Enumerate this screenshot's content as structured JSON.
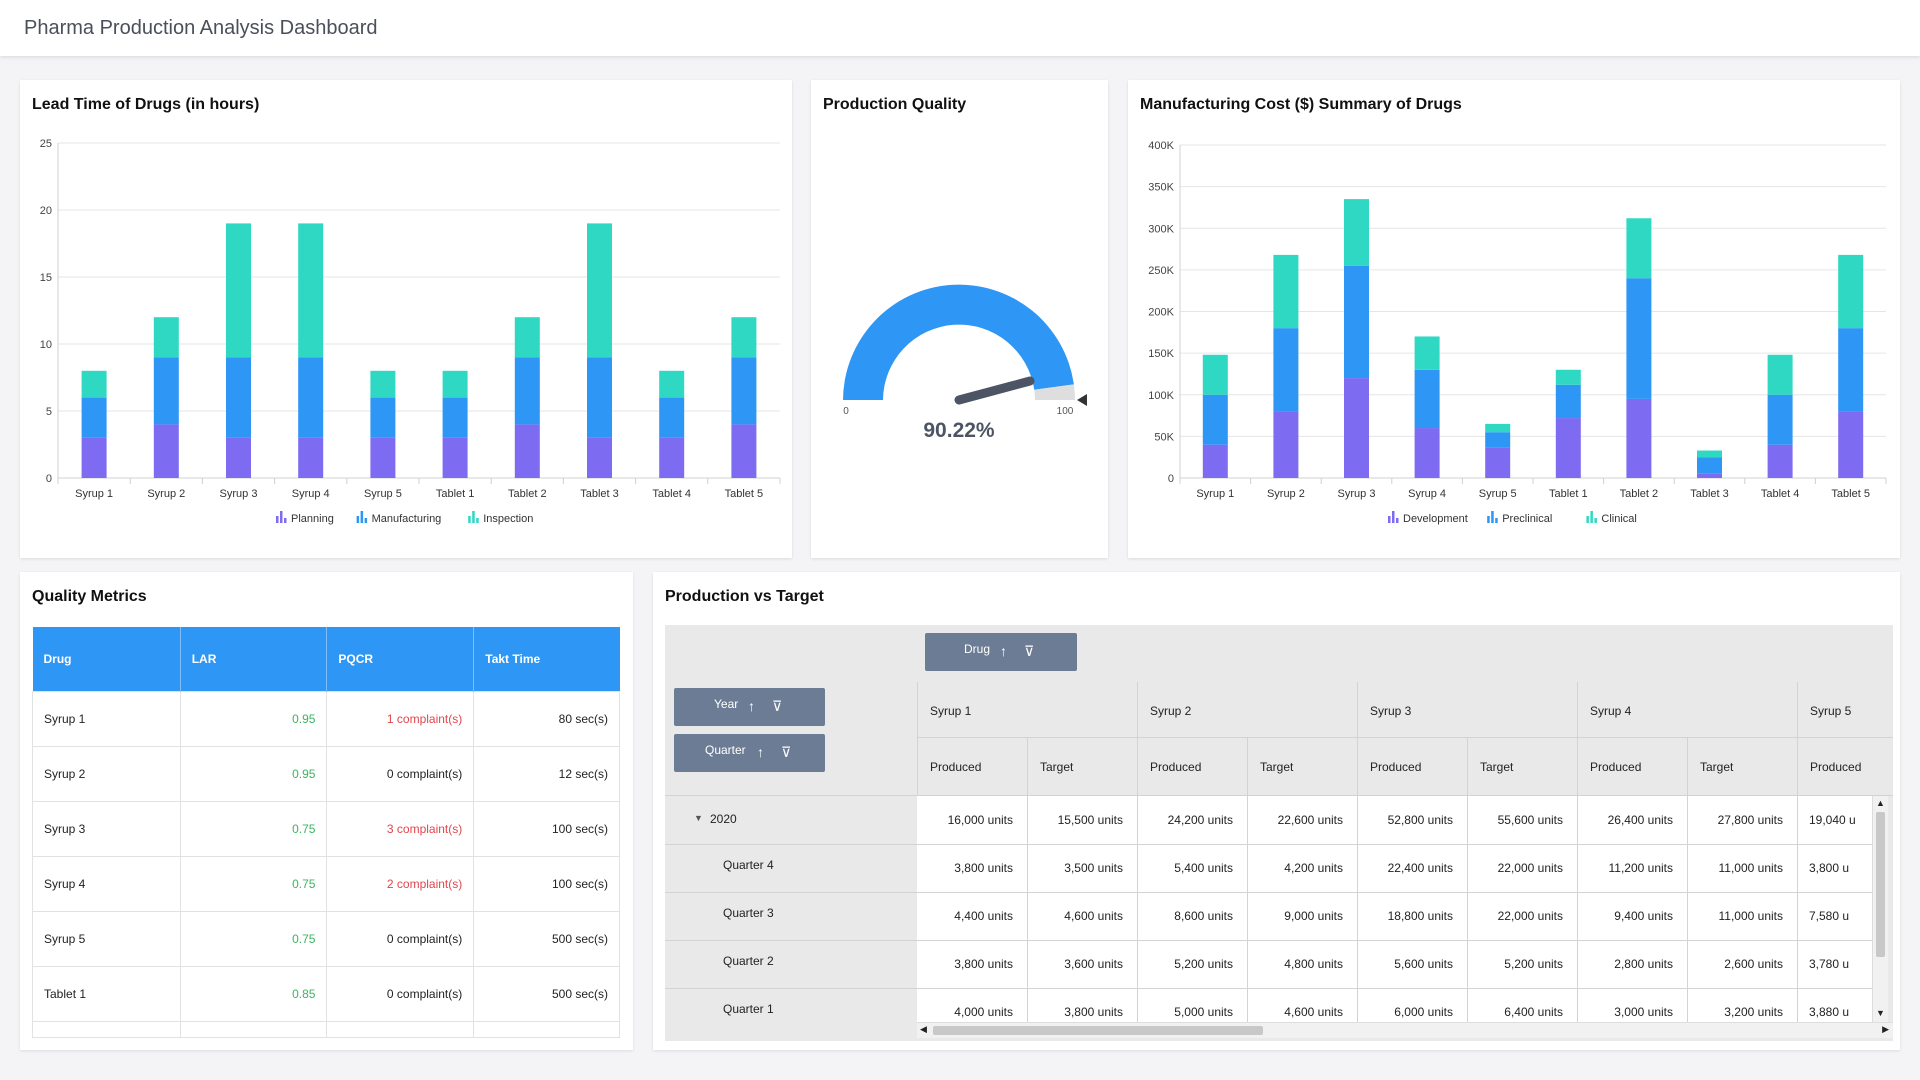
{
  "app": {
    "title": "Pharma Production Analysis Dashboard"
  },
  "lead_time": {
    "title": "Lead Time of Drugs (in hours)",
    "legend": [
      "Planning",
      "Manufacturing",
      "Inspection"
    ]
  },
  "quality": {
    "title": "Production Quality",
    "value_label": "90.22%",
    "min_label": "0",
    "max_label": "100",
    "value": 90.22
  },
  "cost": {
    "title": "Manufacturing Cost ($) Summary of Drugs",
    "legend": [
      "Development",
      "Preclinical",
      "Clinical"
    ]
  },
  "colors": {
    "purple": "#7d6cf2",
    "blue": "#2e96f5",
    "teal": "#2ed8c3",
    "gauge_gray": "#dedede",
    "needle": "#4d5565"
  },
  "chart_data": [
    {
      "type": "bar",
      "stacked": true,
      "title": "Lead Time of Drugs (in hours)",
      "categories": [
        "Syrup 1",
        "Syrup 2",
        "Syrup 3",
        "Syrup 4",
        "Syrup 5",
        "Tablet 1",
        "Tablet 2",
        "Tablet 3",
        "Tablet 4",
        "Tablet 5"
      ],
      "series": [
        {
          "name": "Planning",
          "values": [
            3,
            4,
            3,
            3,
            3,
            3,
            4,
            3,
            3,
            4
          ]
        },
        {
          "name": "Manufacturing",
          "values": [
            3,
            5,
            6,
            6,
            3,
            3,
            5,
            6,
            3,
            5
          ]
        },
        {
          "name": "Inspection",
          "values": [
            2,
            3,
            10,
            10,
            2,
            2,
            3,
            10,
            2,
            3
          ]
        }
      ],
      "yticks": [
        "0",
        "5",
        "10",
        "15",
        "20",
        "25"
      ],
      "ylim": [
        0,
        25
      ],
      "grid": true,
      "legend_position": "bottom"
    },
    {
      "type": "bar",
      "stacked": true,
      "title": "Manufacturing Cost ($) Summary of Drugs",
      "categories": [
        "Syrup 1",
        "Syrup 2",
        "Syrup 3",
        "Syrup 4",
        "Syrup 5",
        "Tablet 1",
        "Tablet 2",
        "Tablet 3",
        "Tablet 4",
        "Tablet 5"
      ],
      "series": [
        {
          "name": "Development",
          "values": [
            40000,
            80000,
            120000,
            60000,
            37000,
            72000,
            95000,
            5000,
            40000,
            80000
          ]
        },
        {
          "name": "Preclinical",
          "values": [
            60000,
            100000,
            135000,
            70000,
            18000,
            40000,
            145000,
            20000,
            60000,
            100000
          ]
        },
        {
          "name": "Clinical",
          "values": [
            48000,
            88000,
            80000,
            40000,
            10000,
            18000,
            72000,
            8000,
            48000,
            88000
          ]
        }
      ],
      "yticks": [
        "0",
        "50K",
        "100K",
        "150K",
        "200K",
        "250K",
        "300K",
        "350K",
        "400K"
      ],
      "ylim": [
        0,
        400000
      ],
      "grid": true,
      "legend_position": "bottom"
    }
  ],
  "quality_metrics": {
    "title": "Quality Metrics",
    "columns": [
      "Drug",
      "LAR",
      "PQCR",
      "Takt Time"
    ],
    "rows": [
      {
        "drug": "Syrup 1",
        "lar": "0.95",
        "pqcr": "1 complaint(s)",
        "pqcr_red": true,
        "takt": "80 sec(s)"
      },
      {
        "drug": "Syrup 2",
        "lar": "0.95",
        "pqcr": "0 complaint(s)",
        "pqcr_red": false,
        "takt": "12 sec(s)"
      },
      {
        "drug": "Syrup 3",
        "lar": "0.75",
        "pqcr": "3 complaint(s)",
        "pqcr_red": true,
        "takt": "100 sec(s)"
      },
      {
        "drug": "Syrup 4",
        "lar": "0.75",
        "pqcr": "2 complaint(s)",
        "pqcr_red": true,
        "takt": "100 sec(s)"
      },
      {
        "drug": "Syrup 5",
        "lar": "0.75",
        "pqcr": "0 complaint(s)",
        "pqcr_red": false,
        "takt": "500 sec(s)"
      },
      {
        "drug": "Tablet 1",
        "lar": "0.85",
        "pqcr": "0 complaint(s)",
        "pqcr_red": false,
        "takt": "500 sec(s)"
      }
    ]
  },
  "production_vs_target": {
    "title": "Production vs Target",
    "pill_drug": "Drug",
    "pill_year": "Year",
    "pill_quarter": "Quarter",
    "drugs": [
      "Syrup 1",
      "Syrup 2",
      "Syrup 3",
      "Syrup 4",
      "Syrup 5"
    ],
    "measures": [
      "Produced",
      "Target"
    ],
    "rows": [
      {
        "label": "2020",
        "expandable": true,
        "values": [
          "16,000 units",
          "15,500 units",
          "24,200 units",
          "22,600 units",
          "52,800 units",
          "55,600 units",
          "26,400 units",
          "27,800 units",
          "19,040 u"
        ]
      },
      {
        "label": "Quarter 4",
        "values": [
          "3,800 units",
          "3,500 units",
          "5,400 units",
          "4,200 units",
          "22,400 units",
          "22,000 units",
          "11,200 units",
          "11,000 units",
          "3,800 u"
        ]
      },
      {
        "label": "Quarter 3",
        "values": [
          "4,400 units",
          "4,600 units",
          "8,600 units",
          "9,000 units",
          "18,800 units",
          "22,000 units",
          "9,400 units",
          "11,000 units",
          "7,580 u"
        ]
      },
      {
        "label": "Quarter 2",
        "values": [
          "3,800 units",
          "3,600 units",
          "5,200 units",
          "4,800 units",
          "5,600 units",
          "5,200 units",
          "2,800 units",
          "2,600 units",
          "3,780 u"
        ]
      },
      {
        "label": "Quarter 1",
        "values": [
          "4,000 units",
          "3,800 units",
          "5,000 units",
          "4,600 units",
          "6,000 units",
          "6,400 units",
          "3,000 units",
          "3,200 units",
          "3,880 u"
        ]
      }
    ]
  }
}
